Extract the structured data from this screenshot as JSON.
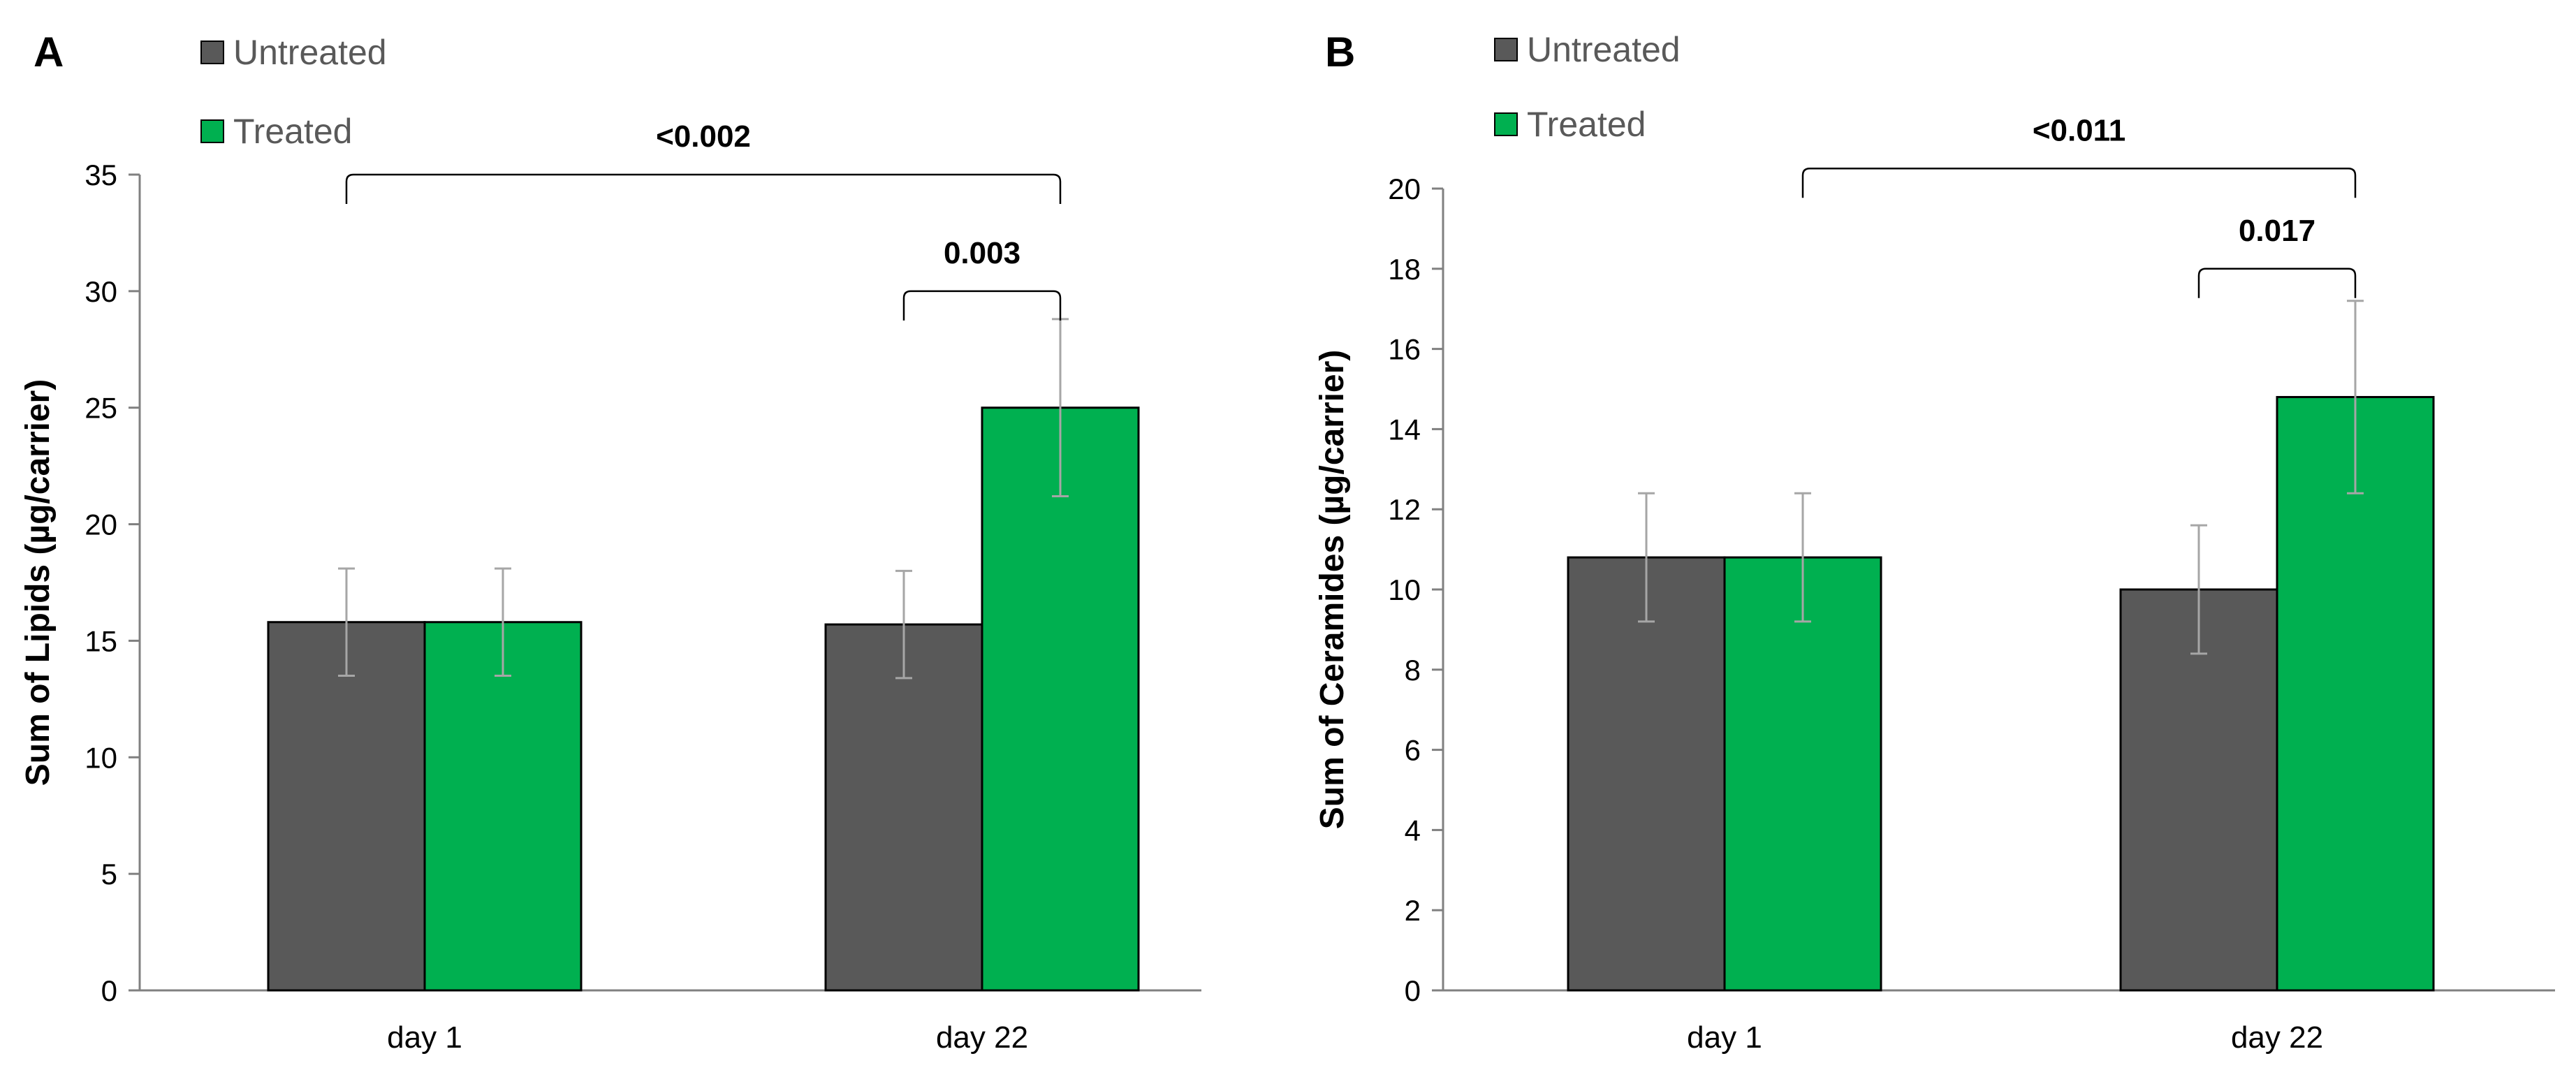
{
  "chart_data": [
    {
      "panel": "A",
      "type": "bar",
      "categories": [
        "day 1",
        "day 22"
      ],
      "series": [
        {
          "name": "Untreated",
          "color": "#595959",
          "values": [
            15.8,
            15.7
          ],
          "errors": [
            2.3,
            2.3
          ]
        },
        {
          "name": "Treated",
          "color": "#00b050",
          "values": [
            15.8,
            25.0
          ],
          "errors": [
            2.3,
            3.8
          ]
        }
      ],
      "ylabel": "Sum of Lipids (µg/carrier)",
      "xlabel": "",
      "ylim": [
        0,
        35
      ],
      "yticks": [
        0,
        5,
        10,
        15,
        20,
        25,
        30,
        35
      ],
      "grid": false,
      "legend": "top-left",
      "significance": [
        {
          "label": "<0.002",
          "from": {
            "category": 0,
            "series": 0
          },
          "to": {
            "category": 1,
            "series": 1
          },
          "level": 35
        },
        {
          "label": "0.003",
          "from": {
            "category": 1,
            "series": 0
          },
          "to": {
            "category": 1,
            "series": 1
          },
          "level": 30
        }
      ]
    },
    {
      "panel": "B",
      "type": "bar",
      "categories": [
        "day 1",
        "day 22"
      ],
      "series": [
        {
          "name": "Untreated",
          "color": "#595959",
          "values": [
            10.8,
            10.0
          ],
          "errors": [
            1.6,
            1.6
          ]
        },
        {
          "name": "Treated",
          "color": "#00b050",
          "values": [
            10.8,
            14.8
          ],
          "errors": [
            1.6,
            2.4
          ]
        }
      ],
      "ylabel": "Sum of Ceramides (µg/carrier)",
      "xlabel": "",
      "ylim": [
        0,
        20
      ],
      "yticks": [
        0,
        2,
        4,
        6,
        8,
        10,
        12,
        14,
        16,
        18,
        20
      ],
      "grid": false,
      "legend": "top-left",
      "significance": [
        {
          "label": "<0.011",
          "from": {
            "category": 0,
            "series": 1
          },
          "to": {
            "category": 1,
            "series": 1
          },
          "level": 20.5
        },
        {
          "label": "0.017",
          "from": {
            "category": 1,
            "series": 0
          },
          "to": {
            "category": 1,
            "series": 1
          },
          "level": 18
        }
      ]
    }
  ]
}
